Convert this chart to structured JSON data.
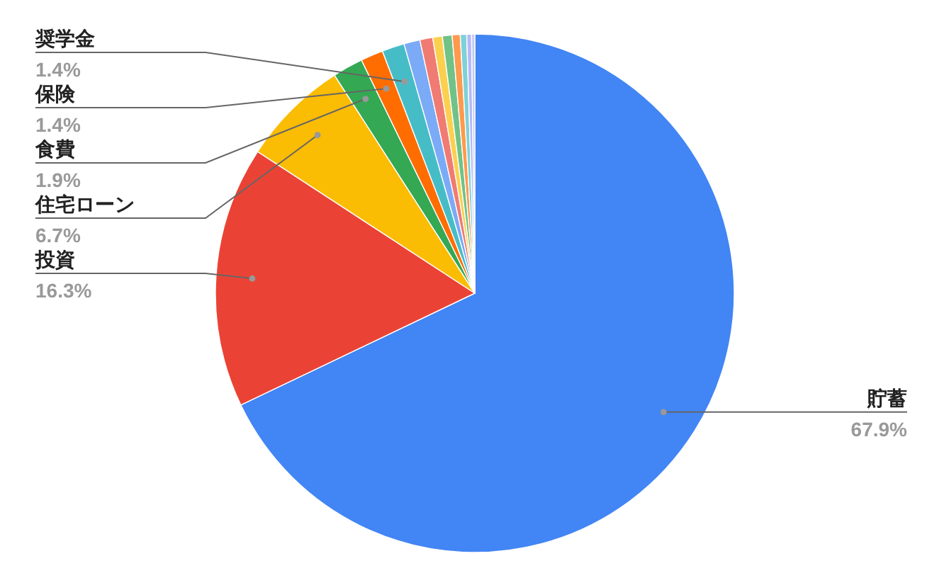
{
  "chart_data": {
    "type": "pie",
    "categories": [
      "貯蓄",
      "投資",
      "住宅ローン",
      "食費",
      "保険",
      "奨学金",
      null,
      null,
      null,
      null,
      null,
      null,
      null,
      null
    ],
    "values": [
      67.9,
      16.3,
      6.7,
      1.9,
      1.4,
      1.4,
      1.0,
      0.8,
      0.6,
      0.6,
      0.5,
      0.4,
      0.3,
      0.2
    ],
    "value_labels": [
      "67.9%",
      "16.3%",
      "6.7%",
      "1.9%",
      "1.4%",
      "1.4%",
      null,
      null,
      null,
      null,
      null,
      null,
      null,
      null
    ],
    "colors": [
      "#4285f4",
      "#ea4335",
      "#fbbc04",
      "#34a853",
      "#ff6d01",
      "#46bdc6",
      "#7baaf7",
      "#f07b72",
      "#fcd04f",
      "#71c287",
      "#ff994d",
      "#7ed1d7",
      "#b3b9f9",
      "#c5cae9"
    ]
  }
}
